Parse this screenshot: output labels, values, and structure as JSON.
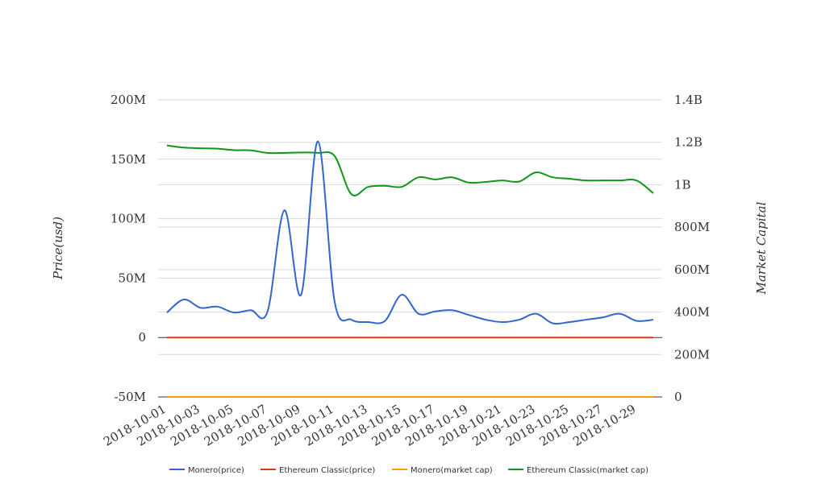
{
  "chart_data": {
    "type": "line",
    "title": "",
    "ylabel_left": "Price(usd)",
    "ylabel_right": "Market Capital",
    "y_left": {
      "min": -50000000,
      "max": 200000000,
      "ticks": [
        -50000000,
        0,
        50000000,
        100000000,
        150000000,
        200000000
      ],
      "tick_labels": [
        "-50M",
        "0",
        "50M",
        "100M",
        "150M",
        "200M"
      ]
    },
    "y_right": {
      "min": 0,
      "max": 1400000000,
      "ticks": [
        0,
        200000000,
        400000000,
        600000000,
        800000000,
        1000000000,
        1200000000,
        1400000000
      ],
      "tick_labels": [
        "0",
        "200M",
        "400M",
        "600M",
        "800M",
        "1B",
        "1.2B",
        "1.4B"
      ]
    },
    "grid": true,
    "legend_position": "bottom",
    "x_tick_labels": [
      "2018-10-01",
      "2018-10-03",
      "2018-10-05",
      "2018-10-07",
      "2018-10-09",
      "2018-10-11",
      "2018-10-13",
      "2018-10-15",
      "2018-10-17",
      "2018-10-19",
      "2018-10-21",
      "2018-10-23",
      "2018-10-25",
      "2018-10-27",
      "2018-10-29"
    ],
    "x": [
      "2018-10-01",
      "2018-10-02",
      "2018-10-03",
      "2018-10-04",
      "2018-10-05",
      "2018-10-06",
      "2018-10-07",
      "2018-10-08",
      "2018-10-09",
      "2018-10-10",
      "2018-10-11",
      "2018-10-12",
      "2018-10-13",
      "2018-10-14",
      "2018-10-15",
      "2018-10-16",
      "2018-10-17",
      "2018-10-18",
      "2018-10-19",
      "2018-10-20",
      "2018-10-21",
      "2018-10-22",
      "2018-10-23",
      "2018-10-24",
      "2018-10-25",
      "2018-10-26",
      "2018-10-27",
      "2018-10-28",
      "2018-10-29",
      "2018-10-30"
    ],
    "series": [
      {
        "name": "Monero(price)",
        "axis": "left",
        "color": "#3366cc",
        "values": [
          21000000,
          32000000,
          25000000,
          26000000,
          21000000,
          23000000,
          22000000,
          107000000,
          36000000,
          165000000,
          30000000,
          15000000,
          13000000,
          14000000,
          36000000,
          20000000,
          22000000,
          23000000,
          19000000,
          15000000,
          13000000,
          15000000,
          20000000,
          12000000,
          13000000,
          15000000,
          17000000,
          20000000,
          14000000,
          15000000
        ]
      },
      {
        "name": "Ethereum Classic(price)",
        "axis": "left",
        "color": "#dc3912",
        "values": [
          0,
          0,
          0,
          0,
          0,
          0,
          0,
          0,
          0,
          0,
          0,
          0,
          0,
          0,
          0,
          0,
          0,
          0,
          0,
          0,
          0,
          0,
          0,
          0,
          0,
          0,
          0,
          0,
          0,
          0
        ]
      },
      {
        "name": "Monero(market cap)",
        "axis": "right",
        "color": "#ff9900",
        "values": [
          0,
          0,
          0,
          0,
          0,
          0,
          0,
          0,
          0,
          0,
          0,
          0,
          0,
          0,
          0,
          0,
          0,
          0,
          0,
          0,
          0,
          0,
          0,
          0,
          0,
          0,
          0,
          0,
          0,
          0
        ]
      },
      {
        "name": "Ethereum Classic(market cap)",
        "axis": "right",
        "color": "#109618",
        "values": [
          1185000000,
          1175000000,
          1172000000,
          1170000000,
          1163000000,
          1162000000,
          1150000000,
          1150000000,
          1152000000,
          1150000000,
          1135000000,
          955000000,
          990000000,
          995000000,
          990000000,
          1035000000,
          1025000000,
          1035000000,
          1010000000,
          1013000000,
          1020000000,
          1015000000,
          1058000000,
          1035000000,
          1028000000,
          1020000000,
          1020000000,
          1020000000,
          1020000000,
          960000000
        ]
      }
    ]
  }
}
